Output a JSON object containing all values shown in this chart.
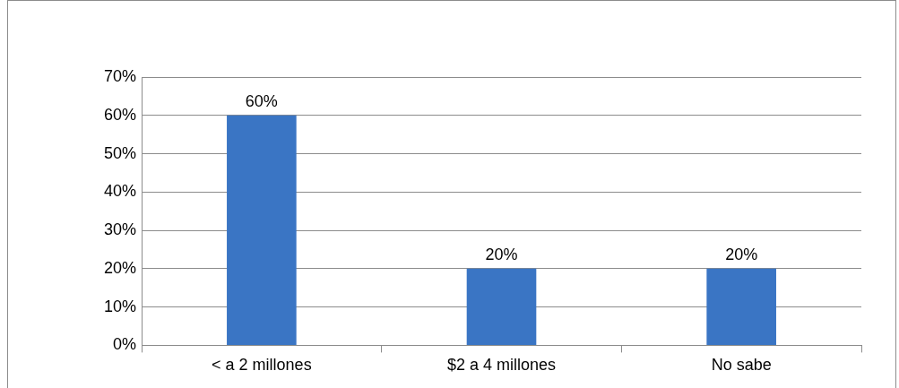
{
  "chart_data": {
    "type": "bar",
    "categories": [
      "< a 2 millones",
      "$2 a 4 millones",
      "No sabe"
    ],
    "values": [
      60,
      20,
      20
    ],
    "color": "#3a75c4",
    "value_labels": [
      "60%",
      "20%",
      "20%"
    ],
    "ylim": [
      0,
      70
    ],
    "yticks": [
      {
        "value": 0,
        "label": "0%"
      },
      {
        "value": 10,
        "label": "10%"
      },
      {
        "value": 20,
        "label": "20%"
      },
      {
        "value": 30,
        "label": "30%"
      },
      {
        "value": 40,
        "label": "40%"
      },
      {
        "value": 50,
        "label": "50%"
      },
      {
        "value": 60,
        "label": "60%"
      },
      {
        "value": 70,
        "label": "70%"
      }
    ],
    "grid": "y"
  }
}
